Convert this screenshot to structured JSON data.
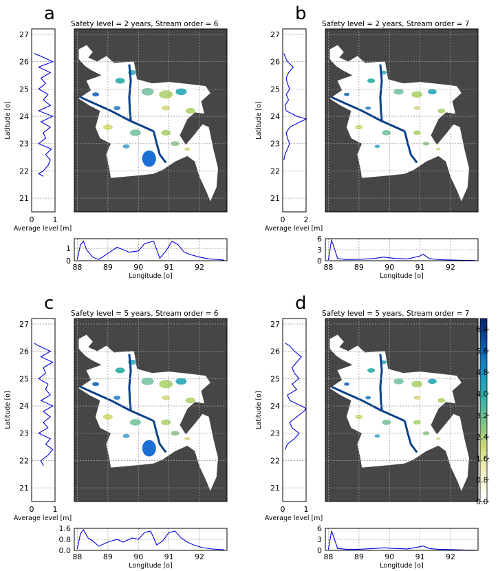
{
  "figure": {
    "panels": [
      {
        "label": "a",
        "title": "Safety level = 2 years, Stream order = 6"
      },
      {
        "label": "b",
        "title": "Safety level = 2 years, Stream order = 7"
      },
      {
        "label": "c",
        "title": "Safety level = 5 years, Stream order = 6"
      },
      {
        "label": "d",
        "title": "Safety level = 5 years, Stream order = 7"
      }
    ],
    "colorbar": {
      "ticks": [
        "0.0",
        "0.8",
        "1.6",
        "2.4",
        "3.2",
        "4.0",
        "4.8",
        "5.6",
        "6.4"
      ]
    },
    "colors": {
      "map_background": "#464646",
      "land": "#ffffff",
      "line": "#0000dd"
    }
  },
  "chart_data": [
    {
      "type": "line",
      "panel": "a",
      "title": "Safety level = 2 years, Stream order = 6",
      "map": {
        "xlabel": "Longitude [o]",
        "ylabel": "Latitude [o]",
        "xlim": [
          87.9,
          92.9
        ],
        "ylim": [
          20.5,
          27.2
        ],
        "xticks": [
          88,
          89,
          90,
          91,
          92
        ],
        "yticks": [
          21,
          22,
          23,
          24,
          25,
          26,
          27
        ]
      },
      "lat_profile": {
        "xlabel": "Average level [m]",
        "xlim": [
          0,
          1
        ],
        "xticks": [
          "0",
          "1"
        ],
        "lat": [
          21.8,
          21.9,
          22.0,
          22.2,
          22.4,
          22.6,
          22.8,
          23.0,
          23.2,
          23.4,
          23.6,
          23.8,
          24.0,
          24.2,
          24.4,
          24.6,
          24.8,
          25.0,
          25.2,
          25.4,
          25.6,
          25.8,
          26.0,
          26.2,
          26.3
        ],
        "value": [
          0.5,
          0.3,
          0.5,
          0.7,
          0.8,
          0.6,
          0.85,
          0.3,
          0.6,
          0.5,
          0.8,
          0.4,
          0.9,
          0.3,
          0.8,
          0.5,
          0.7,
          0.3,
          0.6,
          0.4,
          0.8,
          0.3,
          0.9,
          0.4,
          0.1
        ]
      },
      "lon_profile": {
        "xlabel": "Longitude [o]",
        "ylim": [
          0,
          1.8
        ],
        "yticks": [
          "0",
          "1"
        ],
        "lon": [
          88.0,
          88.1,
          88.2,
          88.3,
          88.5,
          88.7,
          89.0,
          89.3,
          89.5,
          89.7,
          90.0,
          90.2,
          90.5,
          90.7,
          90.9,
          91.1,
          91.3,
          91.5,
          91.7,
          92.0,
          92.3,
          92.6,
          92.8
        ],
        "value": [
          0.1,
          1.3,
          1.6,
          0.9,
          0.3,
          0.1,
          0.6,
          1.1,
          0.9,
          0.7,
          0.8,
          1.4,
          1.6,
          0.2,
          0.8,
          1.6,
          1.3,
          0.7,
          0.5,
          0.3,
          0.15,
          0.1,
          0.05
        ]
      }
    },
    {
      "type": "line",
      "panel": "b",
      "title": "Safety level = 2 years, Stream order = 7",
      "map": {
        "xlabel": "Longitude [o]",
        "ylabel": "Latitude [o]",
        "xlim": [
          87.9,
          92.9
        ],
        "ylim": [
          20.5,
          27.2
        ],
        "xticks": [
          88,
          89,
          90,
          91,
          92
        ],
        "yticks": [
          21,
          22,
          23,
          24,
          25,
          26,
          27
        ]
      },
      "lat_profile": {
        "xlabel": "Average level [m]",
        "xlim": [
          0,
          2
        ],
        "xticks": [
          "0",
          "2"
        ],
        "lat": [
          22.4,
          22.6,
          22.8,
          23.0,
          23.2,
          23.4,
          23.6,
          23.8,
          23.9,
          24.0,
          24.2,
          24.4,
          24.6,
          24.8,
          25.0,
          25.2,
          25.4,
          25.6,
          25.8,
          26.0,
          26.2,
          26.3
        ],
        "value": [
          0.1,
          0.2,
          0.4,
          0.6,
          0.4,
          0.3,
          0.6,
          1.5,
          2.0,
          1.2,
          0.3,
          0.2,
          0.5,
          0.3,
          0.6,
          0.4,
          0.3,
          0.5,
          0.9,
          0.4,
          0.2,
          0.1
        ]
      },
      "lon_profile": {
        "xlabel": "Longitude [o]",
        "ylim": [
          0,
          6
        ],
        "yticks": [
          "0",
          "3",
          "6"
        ],
        "lon": [
          88.0,
          88.1,
          88.15,
          88.3,
          88.6,
          89.0,
          89.5,
          89.8,
          90.2,
          90.6,
          91.0,
          91.1,
          91.3,
          91.6,
          92.0,
          92.5,
          92.8
        ],
        "value": [
          0.2,
          5.6,
          4.5,
          0.6,
          0.3,
          0.4,
          0.6,
          1.0,
          0.6,
          0.5,
          1.3,
          1.8,
          0.6,
          0.3,
          0.2,
          0.1,
          0.05
        ]
      }
    },
    {
      "type": "line",
      "panel": "c",
      "title": "Safety level = 5 years, Stream order = 6",
      "map": {
        "xlabel": "Longitude [o]",
        "ylabel": "Latitude [o]",
        "xlim": [
          87.9,
          92.9
        ],
        "ylim": [
          20.5,
          27.2
        ],
        "xticks": [
          88,
          89,
          90,
          91,
          92
        ],
        "yticks": [
          21,
          22,
          23,
          24,
          25,
          26,
          27
        ]
      },
      "lat_profile": {
        "xlabel": "Average level [m]",
        "xlim": [
          0,
          1
        ],
        "xticks": [
          "0",
          "1"
        ],
        "lat": [
          21.8,
          22.0,
          22.2,
          22.4,
          22.6,
          22.8,
          23.0,
          23.2,
          23.4,
          23.6,
          23.8,
          24.0,
          24.2,
          24.4,
          24.6,
          24.8,
          25.0,
          25.2,
          25.4,
          25.6,
          25.8,
          26.0,
          26.2,
          26.3
        ],
        "value": [
          0.5,
          0.4,
          0.7,
          0.9,
          0.6,
          0.8,
          0.3,
          0.7,
          0.5,
          0.8,
          0.5,
          0.9,
          0.4,
          0.8,
          0.6,
          0.7,
          0.3,
          0.6,
          0.5,
          0.9,
          0.4,
          0.8,
          0.3,
          0.1
        ]
      },
      "lon_profile": {
        "xlabel": "Longitude [o]",
        "ylim": [
          0,
          1.6
        ],
        "yticks": [
          "0.0",
          "0.8",
          "1.6"
        ],
        "lon": [
          88.0,
          88.1,
          88.2,
          88.35,
          88.5,
          88.7,
          89.0,
          89.3,
          89.5,
          89.8,
          90.0,
          90.2,
          90.4,
          90.6,
          90.8,
          91.0,
          91.2,
          91.4,
          91.6,
          91.8,
          92.1,
          92.4,
          92.8
        ],
        "value": [
          0.1,
          1.2,
          1.5,
          0.9,
          0.7,
          0.3,
          0.6,
          0.8,
          0.6,
          0.9,
          0.8,
          1.3,
          1.4,
          0.4,
          0.7,
          1.3,
          1.4,
          0.9,
          0.6,
          0.4,
          0.2,
          0.1,
          0.05
        ]
      }
    },
    {
      "type": "line",
      "panel": "d",
      "title": "Safety level = 5 years, Stream order = 7",
      "map": {
        "xlabel": "Longitude [o]",
        "ylabel": "Latitude [o]",
        "xlim": [
          87.9,
          92.9
        ],
        "ylim": [
          20.5,
          27.2
        ],
        "xticks": [
          88,
          89,
          90,
          91,
          92
        ],
        "yticks": [
          21,
          22,
          23,
          24,
          25,
          26,
          27
        ]
      },
      "lat_profile": {
        "xlabel": "Average level [m]",
        "xlim": [
          0,
          1
        ],
        "xticks": [
          "0",
          "1"
        ],
        "lat": [
          22.4,
          22.6,
          22.8,
          23.0,
          23.2,
          23.4,
          23.6,
          23.8,
          23.9,
          24.0,
          24.2,
          24.4,
          24.6,
          24.8,
          25.0,
          25.2,
          25.4,
          25.6,
          25.8,
          26.0,
          26.2,
          26.3
        ],
        "value": [
          0.1,
          0.2,
          0.5,
          0.7,
          0.4,
          0.3,
          0.6,
          0.9,
          1.0,
          0.8,
          0.3,
          0.2,
          0.6,
          0.4,
          0.7,
          0.5,
          0.4,
          0.6,
          0.8,
          0.5,
          0.3,
          0.1
        ]
      },
      "lon_profile": {
        "xlabel": "Longitude [o]",
        "ylim": [
          0,
          6
        ],
        "yticks": [
          "0",
          "3",
          "6"
        ],
        "lon": [
          88.0,
          88.1,
          88.15,
          88.3,
          88.6,
          89.0,
          89.5,
          89.8,
          90.2,
          90.6,
          91.0,
          91.1,
          91.3,
          91.6,
          92.0,
          92.5,
          92.8
        ],
        "value": [
          0.2,
          5.2,
          4.2,
          0.5,
          0.3,
          0.3,
          0.5,
          0.7,
          0.5,
          0.4,
          1.0,
          1.2,
          0.5,
          0.3,
          0.2,
          0.1,
          0.05
        ]
      }
    }
  ]
}
